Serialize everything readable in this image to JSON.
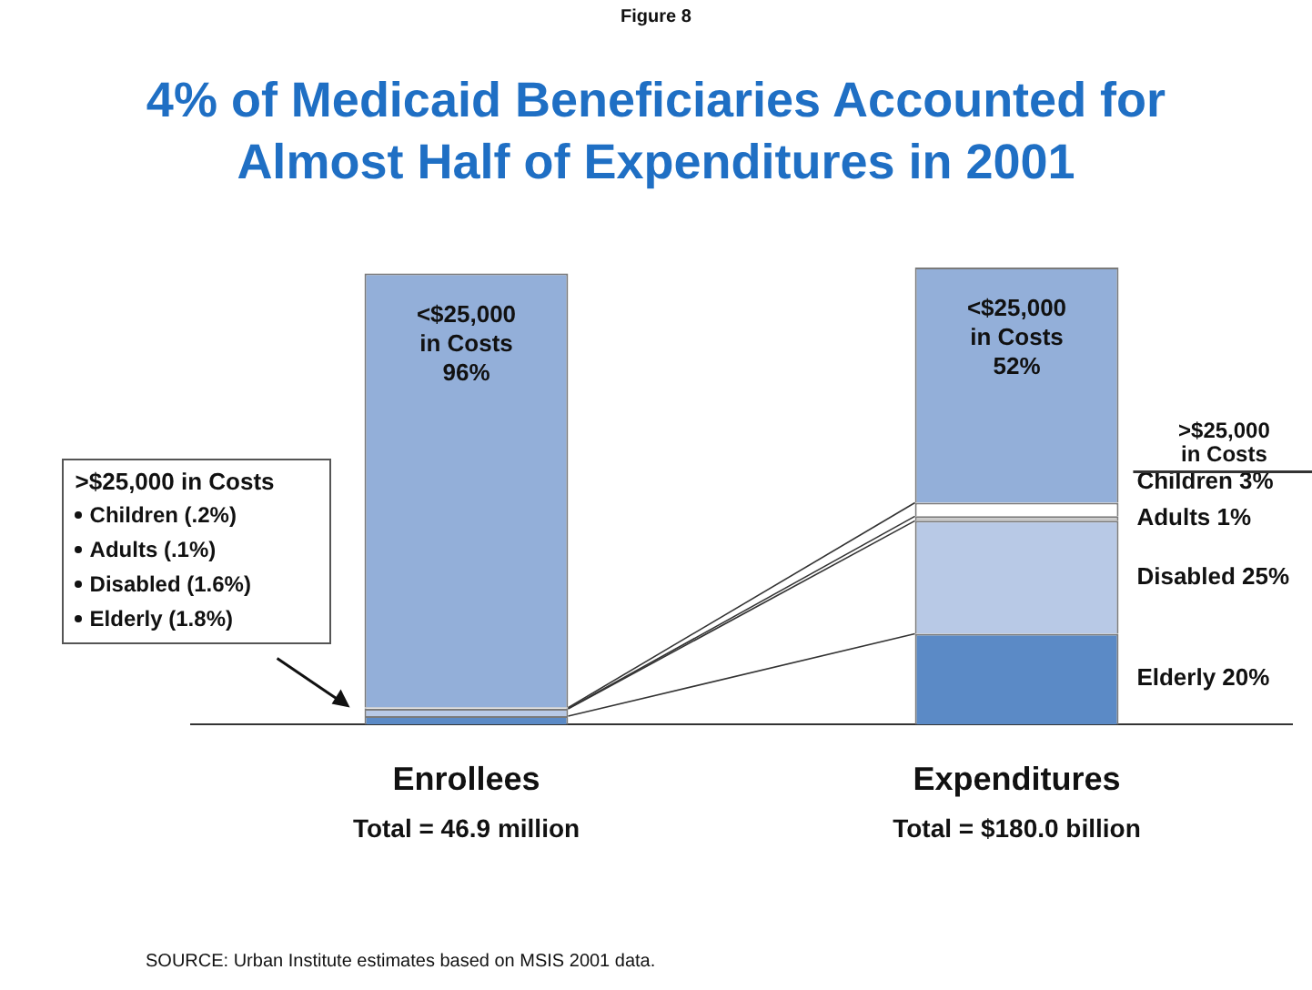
{
  "chart_data": {
    "type": "bar",
    "subtitle": "Figure 8",
    "title": "4% of Medicaid Beneficiaries Accounted for Almost Half of Expenditures in 2001",
    "categories": [
      "Enrollees",
      "Expenditures"
    ],
    "stacked": true,
    "tick_labels": "x",
    "legend_title": ">$25,000 in Costs",
    "series": [
      {
        "name": "Elderly",
        "color": "#5b8ac6",
        "values": [
          1.8,
          20
        ],
        "value_labels": [
          "(1.8%)",
          "20%"
        ]
      },
      {
        "name": "Disabled",
        "color": "#b8c9e6",
        "values": [
          1.6,
          25
        ],
        "value_labels": [
          "(1.6%)",
          "25%"
        ]
      },
      {
        "name": "Adults",
        "color": "#c8c8c8",
        "values": [
          0.1,
          1
        ],
        "value_labels": [
          "(.1%)",
          "1%"
        ]
      },
      {
        "name": "Children",
        "color": "#ffffff",
        "values": [
          0.2,
          3
        ],
        "value_labels": [
          "(.2%)",
          "3%"
        ]
      },
      {
        "name": "<$25,000\nin Costs",
        "color": "#93afd9",
        "values": [
          96,
          52
        ],
        "value_labels": [
          "96%",
          "52%"
        ]
      }
    ],
    "annotations": [
      "Total = 46.9 million",
      "Total = $180.0 billion",
      ">$25,000\nin Costs",
      "SOURCE: Urban Institute estimates based on MSIS 2001 data."
    ]
  }
}
